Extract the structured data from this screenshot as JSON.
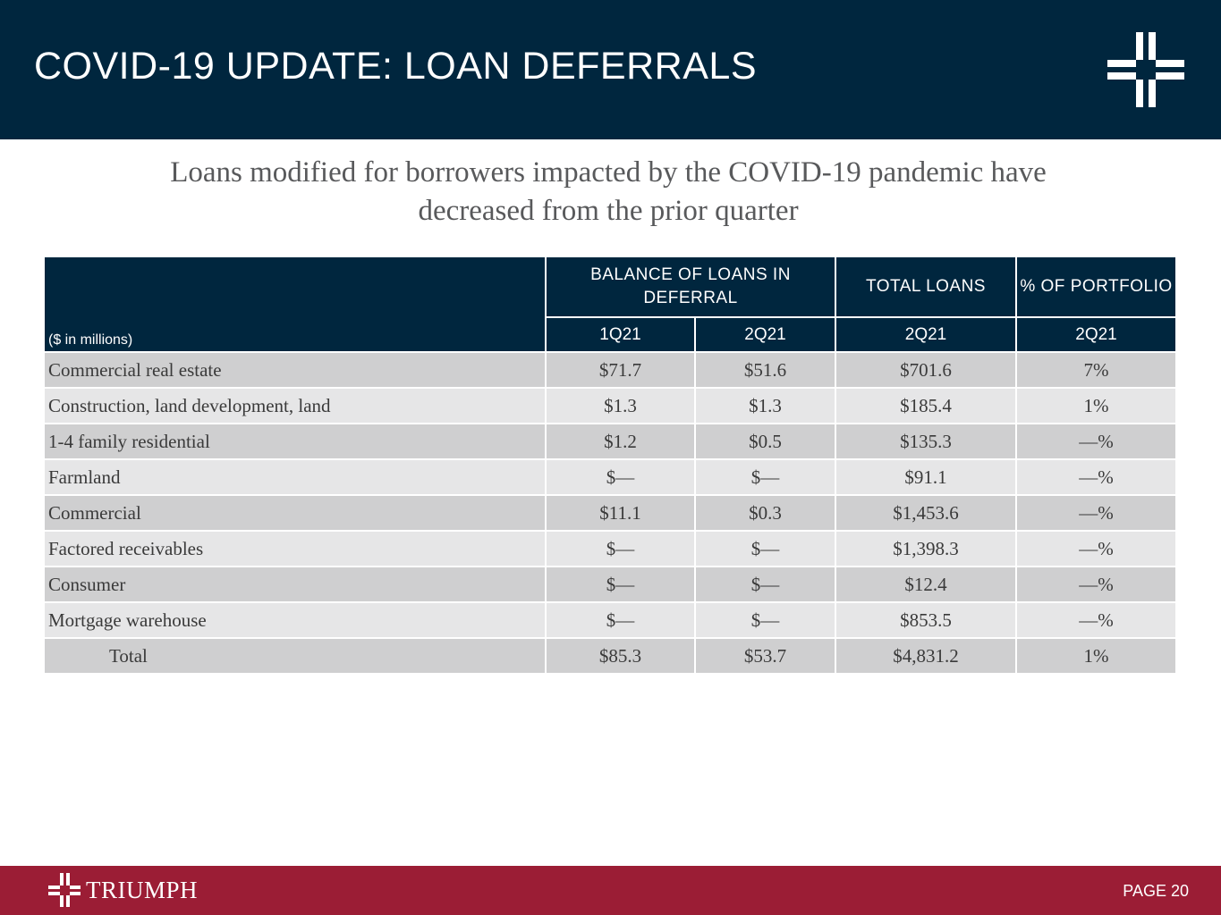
{
  "header": {
    "title": "COVID-19 UPDATE: LOAN DEFERRALS",
    "logo_icon": "triumph-cross-logo-icon"
  },
  "subtitle": {
    "line1": "Loans modified for borrowers impacted by the COVID-19 pandemic have",
    "line2": "decreased from the prior quarter"
  },
  "table": {
    "units_label": "($ in millions)",
    "group_headers": {
      "balance": "BALANCE OF LOANS IN DEFERRAL",
      "total_loans": "TOTAL LOANS",
      "pct_portfolio": "% OF PORTFOLIO"
    },
    "periods": [
      "1Q21",
      "2Q21",
      "2Q21",
      "2Q21"
    ],
    "rows": [
      {
        "label": "Commercial real estate",
        "q1": "$71.7",
        "q2": "$51.6",
        "total": "$701.6",
        "pct": "7%"
      },
      {
        "label": "Construction, land development, land",
        "q1": "$1.3",
        "q2": "$1.3",
        "total": "$185.4",
        "pct": "1%"
      },
      {
        "label": "1-4 family residential",
        "q1": "$1.2",
        "q2": "$0.5",
        "total": "$135.3",
        "pct": "—%"
      },
      {
        "label": "Farmland",
        "q1": "$—",
        "q2": "$—",
        "total": "$91.1",
        "pct": "—%"
      },
      {
        "label": "Commercial",
        "q1": "$11.1",
        "q2": "$0.3",
        "total": "$1,453.6",
        "pct": "—%"
      },
      {
        "label": "Factored receivables",
        "q1": "$—",
        "q2": "$—",
        "total": "$1,398.3",
        "pct": "—%"
      },
      {
        "label": "Consumer",
        "q1": "$—",
        "q2": "$—",
        "total": "$12.4",
        "pct": "—%"
      },
      {
        "label": "Mortgage warehouse",
        "q1": "$—",
        "q2": "$—",
        "total": "$853.5",
        "pct": "—%"
      },
      {
        "label": "Total",
        "q1": "$85.3",
        "q2": "$53.7",
        "total": "$4,831.2",
        "pct": "1%"
      }
    ]
  },
  "footer": {
    "brand": "TRIUMPH",
    "page_label": "PAGE 20",
    "logo_icon": "triumph-cross-logo-icon"
  },
  "colors": {
    "navy": "#00263e",
    "maroon": "#9b1d35",
    "row_dark": "#cfcfd0",
    "row_light": "#e6e6e7"
  }
}
